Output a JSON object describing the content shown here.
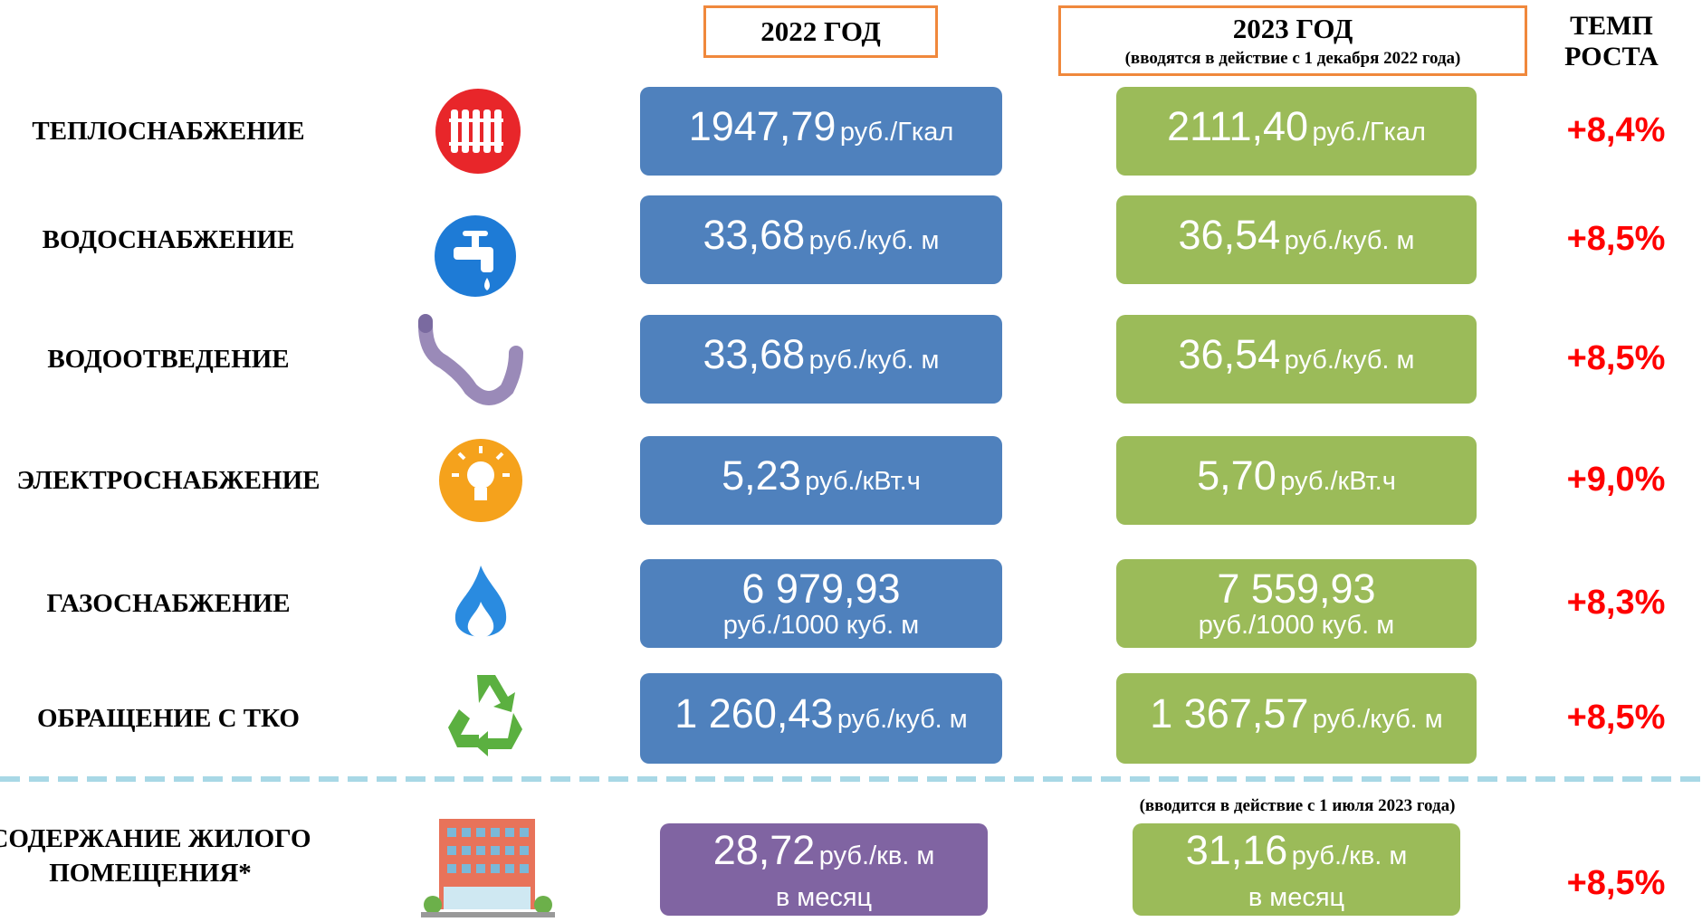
{
  "header": {
    "col_2022": "2022 ГОД",
    "col_2023": "2023 ГОД",
    "col_2023_note": "(вводятся в действие с 1 декабря 2022 года)",
    "growth": "ТЕМП РОСТА"
  },
  "rows": [
    {
      "name": "ТЕПЛОСНАБЖЕНИЕ",
      "value_2022": "1947,79",
      "unit_2022": "руб./Гкал",
      "value_2023": "2111,40",
      "unit_2023": "руб./Гкал",
      "growth": "+8,4%"
    },
    {
      "name": "ВОДОСНАБЖЕНИЕ",
      "value_2022": "33,68",
      "unit_2022": "руб./куб. м",
      "value_2023": "36,54",
      "unit_2023": "руб./куб. м",
      "growth": "+8,5%"
    },
    {
      "name": "ВОДООТВЕДЕНИЕ",
      "value_2022": "33,68",
      "unit_2022": "руб./куб. м",
      "value_2023": "36,54",
      "unit_2023": "руб./куб. м",
      "growth": "+8,5%"
    },
    {
      "name": "ЭЛЕКТРОСНАБЖЕНИЕ",
      "value_2022": "5,23",
      "unit_2022": "руб./кВт.ч",
      "value_2023": "5,70",
      "unit_2023": "руб./кВт.ч",
      "growth": "+9,0%"
    },
    {
      "name": "ГАЗОСНАБЖЕНИЕ",
      "value_2022": "6 979,93",
      "unit_2022": "руб./1000 куб. м",
      "value_2023": "7 559,93",
      "unit_2023": "руб./1000 куб. м",
      "growth": "+8,3%"
    },
    {
      "name": "ОБРАЩЕНИЕ С ТКО",
      "value_2022": "1 260,43",
      "unit_2022": "руб./куб. м",
      "value_2023": "1 367,57",
      "unit_2023": "руб./куб. м",
      "growth": "+8,5%"
    }
  ],
  "housing": {
    "name": "СОДЕРЖАНИЕ ЖИЛОГО ПОМЕЩЕНИЯ*",
    "note_2023": "(вводится в действие с 1 июля 2023 года)",
    "value_2022": "28,72",
    "unit_2022": "руб./кв. м",
    "period_2022": "в месяц",
    "value_2023": "31,16",
    "unit_2023": "руб./кв. м",
    "period_2023": "в месяц",
    "growth": "+8,5%"
  }
}
